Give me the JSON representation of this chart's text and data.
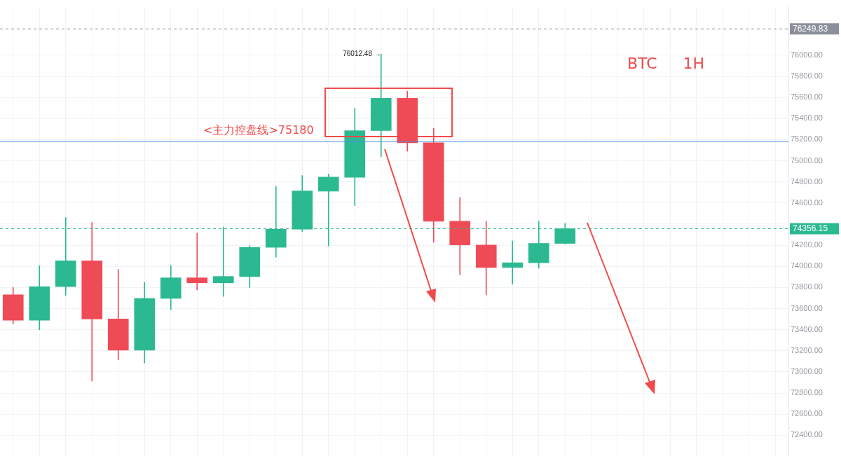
{
  "chart_data": {
    "type": "candlestick",
    "categories": [
      null,
      null,
      null,
      null,
      null,
      null,
      null,
      null,
      null,
      null,
      null,
      null,
      null,
      null,
      null,
      null,
      null,
      null,
      null,
      null,
      null,
      null,
      null,
      null,
      null,
      null,
      null,
      null,
      null,
      null
    ],
    "ohlc": [
      [
        73730,
        73800,
        73455,
        73490
      ],
      [
        73490,
        74005,
        73400,
        73807
      ],
      [
        73807,
        74463,
        73726,
        74052
      ],
      [
        74052,
        74416,
        72914,
        73501
      ],
      [
        73501,
        73970,
        73115,
        73205
      ],
      [
        73205,
        73850,
        73085,
        73696
      ],
      [
        73696,
        74009,
        73589,
        73891
      ],
      [
        73891,
        74313,
        73777,
        73844
      ],
      [
        73844,
        74373,
        73715,
        73904
      ],
      [
        73902,
        74195,
        73799,
        74180
      ],
      [
        74180,
        74759,
        74086,
        74352
      ],
      [
        74352,
        74860,
        74330,
        74714
      ],
      [
        74712,
        74875,
        74193,
        74845
      ],
      [
        74843,
        75498,
        74575,
        75286
      ],
      [
        75286,
        76012.48,
        75038,
        75593
      ],
      [
        75593,
        75659,
        75091,
        75171
      ],
      [
        75171,
        75308,
        74227,
        74427
      ],
      [
        74427,
        74652,
        73919,
        74202
      ],
      [
        74202,
        74427,
        73730,
        73989
      ],
      [
        73989,
        74240,
        73831,
        74034
      ],
      [
        74034,
        74427,
        73982,
        74217
      ],
      [
        74217,
        74407,
        74211,
        74356.15
      ],
      null,
      null,
      null,
      null,
      null,
      null,
      null,
      null
    ],
    "colors": [
      "#ef4b57",
      "#2bb991",
      "#2bb991",
      "#ef4b57",
      "#ef4b57",
      "#2bb991",
      "#2bb991",
      "#ef4b57",
      "#2bb991",
      "#2bb991",
      "#2bb991",
      "#2bb991",
      "#2bb991",
      "#2bb991",
      "#2bb991",
      "#ef4b57",
      "#ef4b57",
      "#ef4b57",
      "#ef4b57",
      "#2bb991",
      "#2bb991",
      "#2bb991",
      null,
      null,
      null,
      null,
      null,
      null,
      null,
      null
    ],
    "ylim": [
      72200,
      76460
    ],
    "yticks": [
      {
        "value": 72400,
        "label": "72400.00"
      },
      {
        "value": 72600,
        "label": "72600.00"
      },
      {
        "value": 72800,
        "label": "72800.00"
      },
      {
        "value": 73000,
        "label": "73000.00"
      },
      {
        "value": 73200,
        "label": "73200.00"
      },
      {
        "value": 73400,
        "label": "73400.00"
      },
      {
        "value": 73600,
        "label": "73600.00"
      },
      {
        "value": 73800,
        "label": "73800.00"
      },
      {
        "value": 74000,
        "label": "74000.00"
      },
      {
        "value": 74200,
        "label": "74200.00"
      },
      {
        "value": 74400,
        "label": null
      },
      {
        "value": 74600,
        "label": "74600.00"
      },
      {
        "value": 74800,
        "label": "74800.00"
      },
      {
        "value": 75000,
        "label": "75000.00"
      },
      {
        "value": 75200,
        "label": "75200.00"
      },
      {
        "value": 75400,
        "label": "75400.00"
      },
      {
        "value": 75600,
        "label": "75600.00"
      },
      {
        "value": 75800,
        "label": "75800.00"
      },
      {
        "value": 76000,
        "label": "76000.00"
      }
    ],
    "tick_labels": "y",
    "grid": true,
    "ref_lines": [
      {
        "axis": "y",
        "value": 75180,
        "label": "<主力控盘线>75180",
        "color": "#4a90e2",
        "line_style": "solid"
      },
      {
        "axis": "y",
        "value": 76249.83,
        "label": "76249.83",
        "color": "#8a8f99",
        "line_style": "dashed"
      },
      {
        "axis": "y",
        "value": 74356.15,
        "label": "74356.15",
        "color": "#2bb991",
        "line_style": "dashed"
      }
    ],
    "annotations": [
      "76012.48 →",
      "BTC 1H"
    ]
  }
}
